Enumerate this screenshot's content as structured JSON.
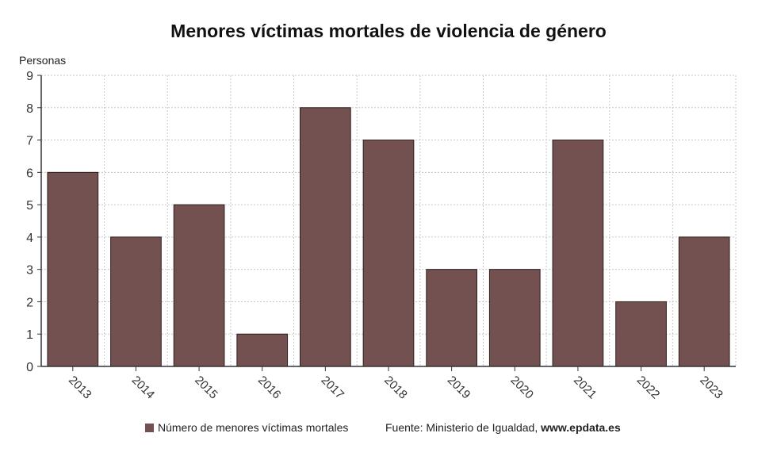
{
  "chart_data": {
    "type": "bar",
    "title": "Menores víctimas mortales de violencia de género",
    "ylabel": "Personas",
    "xlabel": "",
    "categories": [
      "2013",
      "2014",
      "2015",
      "2016",
      "2017",
      "2018",
      "2019",
      "2020",
      "2021",
      "2022",
      "2023"
    ],
    "series": [
      {
        "name": "Número de menores víctimas mortales",
        "values": [
          6,
          4,
          5,
          1,
          8,
          7,
          3,
          3,
          7,
          2,
          4
        ]
      }
    ],
    "ylim": [
      0,
      9
    ],
    "yticks": [
      0,
      1,
      2,
      3,
      4,
      5,
      6,
      7,
      8,
      9
    ],
    "grid": true,
    "legend_position": "bottom",
    "bar_color": "#735150"
  },
  "footer": {
    "source_prefix": "Fuente: Ministerio de Igualdad, ",
    "source_site": "www.epdata.es"
  }
}
